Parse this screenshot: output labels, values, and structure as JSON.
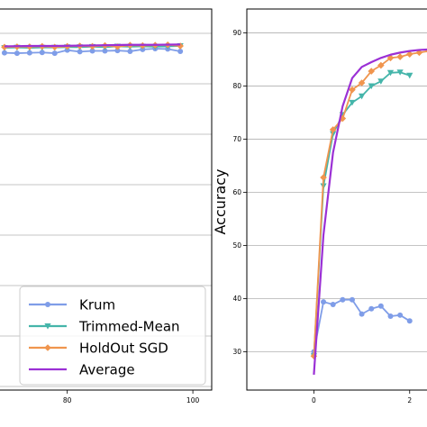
{
  "chart_data": [
    {
      "type": "line",
      "title": "",
      "xlabel": "",
      "ylabel": "",
      "x_ticks": [
        "80",
        "100"
      ],
      "xlim": [
        69,
        103
      ],
      "ylim": [
        0,
        100
      ],
      "grid": "horizontal",
      "legend": {
        "placement": "lower-right",
        "entries": [
          "Krum",
          "Trimmed-Mean",
          "HoldOut SGD",
          "Average"
        ]
      },
      "series": [
        {
          "name": "Krum",
          "color": "#7f9de8",
          "marker": "circle",
          "x": [
            70,
            72,
            74,
            76,
            78,
            80,
            82,
            84,
            86,
            88,
            90,
            92,
            94,
            96,
            98
          ],
          "y": [
            88.5,
            88.4,
            88.5,
            88.6,
            88.4,
            89.2,
            88.8,
            89.0,
            89.0,
            89.1,
            88.9,
            89.4,
            89.6,
            89.5,
            88.9
          ]
        },
        {
          "name": "Trimmed-Mean",
          "color": "#45b5aa",
          "marker": "triangle-down",
          "x": [
            70,
            72,
            74,
            76,
            78,
            80,
            82,
            84,
            86,
            88,
            90,
            92,
            94,
            96,
            98
          ],
          "y": [
            89.8,
            89.9,
            89.8,
            89.9,
            89.9,
            90.0,
            90.0,
            90.1,
            90.0,
            90.2,
            90.1,
            90.2,
            90.1,
            90.2,
            90.3
          ]
        },
        {
          "name": "HoldOut SGD",
          "color": "#f0954e",
          "marker": "diamond",
          "x": [
            70,
            72,
            74,
            76,
            78,
            80,
            82,
            84,
            86,
            88,
            90,
            92,
            94,
            96,
            98
          ],
          "y": [
            90.0,
            90.1,
            90.1,
            90.2,
            90.0,
            90.2,
            90.3,
            90.2,
            90.4,
            90.1,
            90.5,
            90.4,
            90.5,
            90.6,
            90.3
          ]
        },
        {
          "name": "Average",
          "color": "#9b30d5",
          "marker": "none",
          "x": [
            70,
            74,
            78,
            82,
            86,
            90,
            94,
            98
          ],
          "y": [
            90.2,
            90.3,
            90.3,
            90.4,
            90.5,
            90.6,
            90.6,
            90.7
          ]
        }
      ]
    },
    {
      "type": "line",
      "title": "",
      "xlabel": "",
      "ylabel": "Accuracy",
      "x_ticks": [
        "0",
        "2"
      ],
      "y_ticks": [
        30,
        40,
        50,
        60,
        70,
        80,
        90
      ],
      "xlim": [
        -1.4,
        2.55
      ],
      "ylim": [
        22.8,
        94.5
      ],
      "grid": "horizontal",
      "series": [
        {
          "name": "Krum",
          "color": "#7f9de8",
          "marker": "circle",
          "x": [
            0,
            0.2,
            0.4,
            0.6,
            0.8,
            1.0,
            1.2,
            1.4,
            1.6,
            1.8,
            2.0
          ],
          "y": [
            30.0,
            39.4,
            38.9,
            39.8,
            39.8,
            37.1,
            38.1,
            38.6,
            36.7,
            36.9,
            35.8
          ]
        },
        {
          "name": "Trimmed-Mean",
          "color": "#45b5aa",
          "marker": "triangle-down",
          "x": [
            0,
            0.2,
            0.4,
            0.6,
            0.8,
            1.0,
            1.2,
            1.4,
            1.6,
            1.8,
            2.0
          ],
          "y": [
            29.2,
            61.2,
            71.0,
            74.6,
            76.9,
            78.1,
            80.0,
            80.9,
            82.5,
            82.6,
            82.0
          ]
        },
        {
          "name": "HoldOut SGD",
          "color": "#f0954e",
          "marker": "diamond",
          "x": [
            0,
            0.2,
            0.4,
            0.6,
            0.8,
            1.0,
            1.2,
            1.4,
            1.6,
            1.8,
            2.0,
            2.2,
            2.4
          ],
          "y": [
            29.2,
            62.8,
            71.8,
            73.9,
            79.3,
            80.6,
            82.8,
            83.9,
            85.3,
            85.5,
            86.0,
            86.3,
            86.6
          ]
        },
        {
          "name": "Average",
          "color": "#9b30d5",
          "marker": "none",
          "x": [
            0,
            0.2,
            0.4,
            0.6,
            0.8,
            1.0,
            1.2,
            1.4,
            1.6,
            1.8,
            2.0,
            2.2,
            2.4
          ],
          "y": [
            25.7,
            52.0,
            67.5,
            76.2,
            81.5,
            83.6,
            84.5,
            85.3,
            85.9,
            86.3,
            86.6,
            86.8,
            86.9
          ]
        }
      ]
    }
  ]
}
